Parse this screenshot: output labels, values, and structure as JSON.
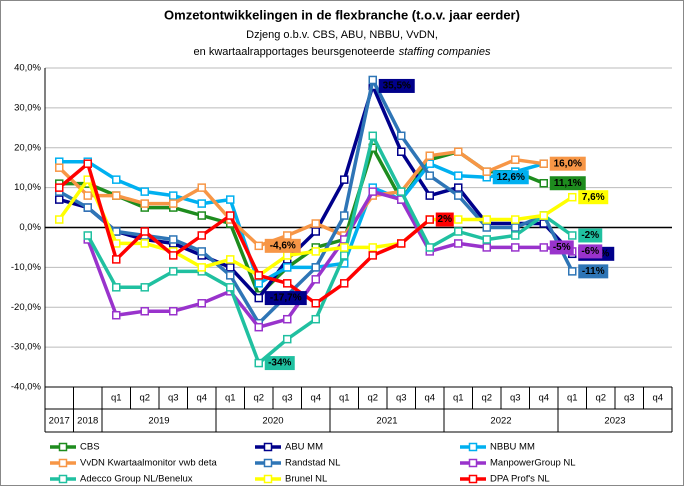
{
  "chart_data": {
    "type": "line",
    "title": "Omzetontwikkelingen in de flexbranche (t.o.v. jaar eerder)",
    "subtitle": "Dzjeng o.b.v. CBS, ABU, NBBU, VvDN,",
    "subtitle_line2": "en kwartaalrapportages beursgenoteerde",
    "subtitle_italic": "staffing companies",
    "categories": [
      null,
      null,
      "q1",
      "q2",
      "q3",
      "q4",
      "q1",
      "q2",
      "q3",
      "q4",
      "q1",
      "q2",
      "q3",
      "q4",
      "q1",
      "q2",
      "q3",
      "q4",
      "q1",
      "q2",
      "q3",
      "q4"
    ],
    "groups": [
      "2017",
      "2018",
      "2019",
      "2020",
      "2021",
      "2022",
      "2023"
    ],
    "ylim": [
      -40,
      40
    ],
    "yticks": [
      {
        "value": -40,
        "label": "-40,0%"
      },
      {
        "value": -30,
        "label": "-30,0%"
      },
      {
        "value": -20,
        "label": "-20,0%"
      },
      {
        "value": -10,
        "label": "-10,0%"
      },
      {
        "value": 0,
        "label": "0,0%"
      },
      {
        "value": 10,
        "label": "10,0%"
      },
      {
        "value": 20,
        "label": "20,0%"
      },
      {
        "value": 30,
        "label": "30,0%"
      },
      {
        "value": 40,
        "label": "40,0%"
      }
    ],
    "grid": true,
    "series": [
      {
        "name": "CBS",
        "color": "#1e8c1e",
        "values": [
          11,
          11,
          8,
          5,
          5,
          3,
          1,
          -17,
          -10,
          -5,
          -3,
          20,
          7,
          17,
          19,
          14,
          14,
          11.1,
          null,
          null,
          null,
          null
        ],
        "value_labels": [
          null,
          null,
          null,
          null,
          null,
          null,
          null,
          null,
          null,
          null,
          null,
          null,
          null,
          null,
          null,
          null,
          null,
          "11,1%",
          null,
          null,
          null,
          null
        ]
      },
      {
        "name": "ABU MM",
        "color": "#00008b",
        "values": [
          7,
          5,
          -1,
          -3,
          -4,
          -7,
          -10,
          -17.7,
          -8,
          -1,
          12,
          35.5,
          19,
          8,
          10,
          1,
          1,
          1,
          -6.6,
          null,
          null,
          null
        ],
        "value_labels": [
          null,
          null,
          null,
          null,
          null,
          null,
          null,
          "-17,7%",
          null,
          null,
          null,
          "35,5%",
          null,
          null,
          null,
          null,
          null,
          null,
          "-6,6%",
          null,
          null,
          null
        ]
      },
      {
        "name": "NBBU MM",
        "color": "#00b0f0",
        "values": [
          16.5,
          16.5,
          12,
          9,
          8,
          6,
          7,
          -14,
          -10,
          -10,
          -9,
          10,
          7,
          16,
          13,
          12.6,
          14,
          16,
          null,
          null,
          null,
          null
        ],
        "value_labels": [
          null,
          null,
          null,
          null,
          null,
          null,
          null,
          null,
          null,
          null,
          null,
          null,
          null,
          null,
          null,
          "12,6%",
          null,
          null,
          null,
          null,
          null,
          null
        ]
      },
      {
        "name": "VvDN Kwartaalmonitor vwb deta",
        "color": "#f79646",
        "values": [
          15,
          8,
          8,
          6,
          6,
          10,
          2,
          -4.6,
          -2,
          1,
          -2,
          8,
          9,
          18,
          19,
          14,
          17,
          16,
          null,
          null,
          null,
          null
        ],
        "value_labels": [
          null,
          null,
          null,
          null,
          null,
          null,
          null,
          "-4,6%",
          null,
          null,
          null,
          null,
          null,
          null,
          null,
          null,
          null,
          "16,0%",
          null,
          null,
          null,
          null
        ]
      },
      {
        "name": "Randstad NL",
        "color": "#2e75b6",
        "values": [
          9,
          5,
          -1,
          -2,
          -3,
          -6,
          -12,
          -24,
          -17,
          -10,
          3,
          37,
          23,
          13,
          8,
          0,
          0,
          3,
          -11,
          null,
          null,
          null
        ],
        "value_labels": [
          null,
          null,
          null,
          null,
          null,
          null,
          null,
          null,
          null,
          null,
          null,
          null,
          null,
          null,
          null,
          null,
          null,
          null,
          "-11%",
          null,
          null,
          null
        ]
      },
      {
        "name": "ManpowerGroup NL",
        "color": "#9933cc",
        "values": [
          null,
          -3,
          -22,
          -21,
          -21,
          -19,
          -16,
          -25,
          -23,
          -13,
          -3,
          9,
          7,
          -6,
          -4,
          -5,
          -5,
          -5,
          -6,
          null,
          null,
          null
        ],
        "value_labels": [
          null,
          null,
          null,
          null,
          null,
          null,
          null,
          null,
          null,
          null,
          null,
          null,
          null,
          null,
          null,
          null,
          null,
          "-5%",
          "-6%",
          null,
          null,
          null
        ]
      },
      {
        "name": "Adecco Group NL/Benelux",
        "color": "#20c0a0",
        "values": [
          null,
          -2,
          -15,
          -15,
          -11,
          -11,
          -15,
          -34,
          -28,
          -23,
          -7,
          23,
          9,
          -5,
          -1,
          -3,
          -2,
          3,
          -2,
          null,
          null,
          null
        ],
        "value_labels": [
          null,
          null,
          null,
          null,
          null,
          null,
          null,
          "-34%",
          null,
          null,
          null,
          null,
          null,
          null,
          null,
          null,
          null,
          null,
          "-2%",
          null,
          null,
          null
        ]
      },
      {
        "name": "Brunel NL",
        "color": "#ffff00",
        "values": [
          2,
          12,
          -4,
          -4,
          -6,
          -10,
          -8,
          -12,
          -7,
          -6,
          -5,
          -5,
          -4,
          2,
          2,
          2,
          2,
          3,
          7.6,
          null,
          null,
          null
        ],
        "value_labels": [
          null,
          null,
          null,
          null,
          null,
          null,
          null,
          null,
          null,
          null,
          null,
          null,
          null,
          null,
          null,
          null,
          null,
          null,
          "7,6%",
          null,
          null,
          null
        ]
      },
      {
        "name": "DPA Prof's NL",
        "color": "#ff0000",
        "values": [
          10,
          16,
          -8,
          -1,
          -7,
          -2,
          3,
          -12,
          -14,
          -19,
          -14,
          -7,
          -4,
          2,
          null,
          null,
          null,
          null,
          null,
          null,
          null,
          null
        ],
        "value_labels": [
          null,
          null,
          null,
          null,
          null,
          null,
          null,
          null,
          null,
          null,
          null,
          null,
          null,
          "2%",
          null,
          null,
          null,
          null,
          null,
          null,
          null,
          null
        ]
      }
    ]
  }
}
